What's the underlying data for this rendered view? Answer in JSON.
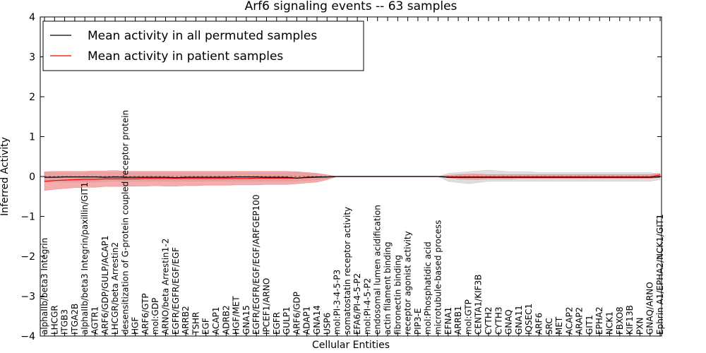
{
  "chart_data": {
    "type": "line",
    "title": "Arf6 signaling events -- 63 samples",
    "xlabel": "Cellular Entities",
    "ylabel": "Inferred Activity",
    "ylim": [
      -4,
      4
    ],
    "yticks": [
      -4,
      -3,
      -2,
      -1,
      0,
      1,
      2,
      3,
      4
    ],
    "ytick_labels": [
      "−4",
      "−3",
      "−2",
      "−1",
      "0",
      "1",
      "2",
      "3",
      "4"
    ],
    "grid": false,
    "legend_position": "top-left",
    "categories": [
      "alphaIIb/beta3 Integrin",
      "LHCGR",
      "ITGB3",
      "ITGA2B",
      "alphaIIb/beta3 Integrin/paxillin/GIT1",
      "AGTR1",
      "ARF6/GDP/GULP/ACAP1",
      "LHCGR/beta Arrestin2",
      "desensitization of G-protein coupled receptor protein",
      "HGF",
      "ARF6/GTP",
      "mol:GDP",
      "ARNO/beta Arrestin1-2",
      "EGFR/EGFR/EGF/EGF",
      "ARRB2",
      "TSHR",
      "EGF",
      "ACAP1",
      "ADRB2",
      "HGF/MET",
      "GNA15",
      "EGFR/EGFR/EGF/EGF/ARFGEP100",
      "IPCEF1/ARNO",
      "EGFR",
      "GULP1",
      "ARF6/GDP",
      "ADAP1",
      "GNA14",
      "USP6",
      "mol:PI-3-4-5-P3",
      "somatostatin receptor activity",
      "EFA6/PI-4-5-P2",
      "mol:PI-4-5-P2",
      "endosomal lumen acidification",
      "actin filament binding",
      "fibronectin binding",
      "receptor agonist activity",
      "PIP3-E",
      "mol:Phosphatidic acid",
      "microtubule-based process",
      "EFNA1",
      "ARRB1",
      "mol:GTP",
      "CENTA1/KIF3B",
      "CYTH2",
      "CYTH3",
      "GNAQ",
      "GNA11",
      "IQSEC1",
      "ARF6",
      "SRC",
      "MET",
      "ACAP2",
      "ARAP2",
      "GIT1",
      "EPHA2",
      "NCK1",
      "FBXO8",
      "KIF13B",
      "PXN",
      "GNAQ/ARNO",
      "Ephrin A1/EPHA2/NCK1/GIT1"
    ],
    "series": [
      {
        "name": "Mean activity in all permuted samples",
        "color": "#000000",
        "band_color": "#c8c8c8",
        "values": [
          -0.02,
          -0.02,
          -0.01,
          -0.01,
          -0.01,
          -0.01,
          -0.02,
          -0.01,
          -0.02,
          -0.02,
          -0.02,
          -0.02,
          -0.02,
          -0.03,
          -0.02,
          -0.02,
          -0.02,
          -0.02,
          -0.02,
          -0.01,
          -0.01,
          -0.01,
          -0.02,
          -0.02,
          -0.02,
          -0.04,
          -0.02,
          -0.01,
          -0.01,
          0,
          0,
          0,
          0,
          0,
          0,
          0,
          0,
          0,
          0,
          0,
          -0.02,
          -0.02,
          -0.02,
          -0.02,
          -0.02,
          -0.02,
          -0.02,
          -0.02,
          -0.02,
          -0.02,
          -0.02,
          -0.02,
          -0.02,
          -0.02,
          -0.02,
          -0.02,
          -0.02,
          -0.02,
          -0.02,
          -0.02,
          -0.02,
          -0.01
        ],
        "lower": [
          -0.14,
          -0.14,
          -0.14,
          -0.14,
          -0.14,
          -0.14,
          -0.13,
          -0.12,
          -0.12,
          -0.12,
          -0.12,
          -0.12,
          -0.12,
          -0.12,
          -0.12,
          -0.12,
          -0.12,
          -0.12,
          -0.12,
          -0.12,
          -0.12,
          -0.12,
          -0.12,
          -0.12,
          -0.12,
          -0.12,
          -0.1,
          -0.08,
          -0.05,
          0,
          0,
          0,
          0,
          0,
          0,
          0,
          0,
          0,
          0,
          0,
          -0.12,
          -0.15,
          -0.18,
          -0.15,
          -0.12,
          -0.12,
          -0.12,
          -0.12,
          -0.12,
          -0.12,
          -0.12,
          -0.12,
          -0.12,
          -0.12,
          -0.12,
          -0.12,
          -0.12,
          -0.12,
          -0.12,
          -0.12,
          -0.12,
          -0.08
        ],
        "upper": [
          0.1,
          0.1,
          0.1,
          0.1,
          0.1,
          0.1,
          0.1,
          0.1,
          0.1,
          0.1,
          0.1,
          0.1,
          0.1,
          0.1,
          0.1,
          0.1,
          0.1,
          0.1,
          0.1,
          0.1,
          0.1,
          0.1,
          0.1,
          0.1,
          0.1,
          0.1,
          0.08,
          0.06,
          0.03,
          0,
          0,
          0,
          0,
          0,
          0,
          0,
          0,
          0,
          0,
          0,
          0.08,
          0.1,
          0.12,
          0.14,
          0.16,
          0.14,
          0.12,
          0.12,
          0.12,
          0.1,
          0.1,
          0.1,
          0.1,
          0.1,
          0.1,
          0.1,
          0.1,
          0.1,
          0.1,
          0.1,
          0.1,
          0.06
        ]
      },
      {
        "name": "Mean activity in patient samples",
        "color": "#ff0000",
        "band_color": "#f08080",
        "values": [
          -0.12,
          -0.1,
          -0.09,
          -0.08,
          -0.07,
          -0.07,
          -0.06,
          -0.06,
          -0.06,
          -0.06,
          -0.05,
          -0.05,
          -0.05,
          -0.05,
          -0.05,
          -0.05,
          -0.05,
          -0.05,
          -0.05,
          -0.05,
          -0.05,
          -0.04,
          -0.04,
          -0.04,
          -0.04,
          -0.04,
          -0.03,
          -0.02,
          -0.01,
          0,
          0,
          0,
          0,
          0,
          0,
          0,
          0,
          0,
          0,
          0,
          -0.01,
          -0.01,
          -0.01,
          -0.01,
          -0.01,
          -0.01,
          -0.01,
          -0.01,
          -0.01,
          -0.01,
          -0.01,
          -0.01,
          -0.01,
          -0.01,
          -0.01,
          -0.01,
          -0.01,
          -0.01,
          -0.01,
          -0.01,
          -0.01,
          0.04
        ],
        "lower": [
          -0.35,
          -0.32,
          -0.3,
          -0.28,
          -0.27,
          -0.27,
          -0.25,
          -0.25,
          -0.25,
          -0.24,
          -0.24,
          -0.23,
          -0.24,
          -0.24,
          -0.23,
          -0.23,
          -0.22,
          -0.22,
          -0.22,
          -0.21,
          -0.21,
          -0.21,
          -0.2,
          -0.2,
          -0.2,
          -0.18,
          -0.16,
          -0.14,
          -0.08,
          0,
          0,
          0,
          0,
          0,
          0,
          0,
          0,
          0,
          0,
          0,
          -0.03,
          -0.06,
          -0.07,
          -0.07,
          -0.06,
          -0.06,
          -0.06,
          -0.05,
          -0.05,
          -0.05,
          -0.05,
          -0.05,
          -0.05,
          -0.05,
          -0.05,
          -0.05,
          -0.05,
          -0.05,
          -0.05,
          -0.05,
          -0.05,
          -0.02
        ],
        "upper": [
          0.12,
          0.13,
          0.13,
          0.13,
          0.13,
          0.14,
          0.14,
          0.15,
          0.13,
          0.13,
          0.13,
          0.13,
          0.13,
          0.13,
          0.13,
          0.13,
          0.13,
          0.13,
          0.13,
          0.13,
          0.13,
          0.13,
          0.13,
          0.13,
          0.13,
          0.12,
          0.1,
          0.08,
          0.04,
          0,
          0,
          0,
          0,
          0,
          0,
          0,
          0,
          0,
          0,
          0,
          0.03,
          0.05,
          0.06,
          0.06,
          0.05,
          0.05,
          0.05,
          0.05,
          0.05,
          0.05,
          0.05,
          0.05,
          0.05,
          0.05,
          0.05,
          0.05,
          0.05,
          0.05,
          0.05,
          0.05,
          0.05,
          0.08
        ]
      }
    ]
  }
}
